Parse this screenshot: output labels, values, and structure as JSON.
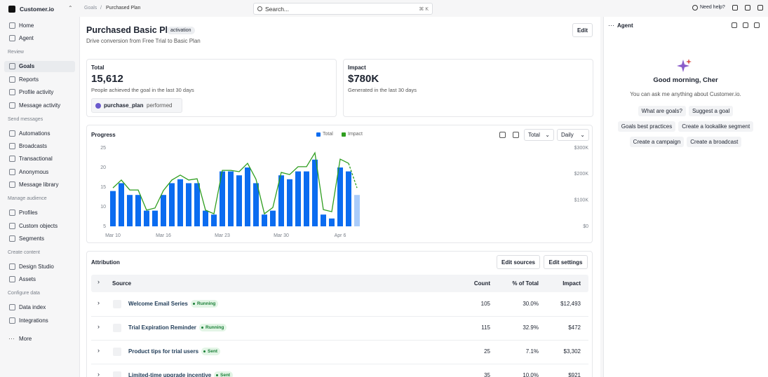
{
  "topbar": {
    "breadcrumb": [
      "Goals",
      "Purchased Plan"
    ],
    "search": "Search...",
    "shortcut": "⌘ K",
    "help": "Need help?"
  },
  "sidebar": {
    "brand": "Customer.io",
    "top": [
      "Home",
      "Agent"
    ],
    "sections": [
      {
        "title": "Review",
        "items": [
          "Goals",
          "Reports",
          "Profile activity",
          "Message activity"
        ]
      },
      {
        "title": "Send messages",
        "items": [
          "Automations",
          "Broadcasts",
          "Transactional",
          "Anonymous",
          "Message library"
        ]
      },
      {
        "title": "Manage audience",
        "items": [
          "Profiles",
          "Custom objects",
          "Segments"
        ]
      },
      {
        "title": "Create content",
        "items": [
          "Design Studio",
          "Assets"
        ]
      },
      {
        "title": "Configure data",
        "items": [
          "Data index",
          "Integrations"
        ]
      }
    ],
    "more": "More"
  },
  "header": {
    "title": "Purchased Basic Plan",
    "badge": "activation",
    "subtitle": "Drive conversion from Free Trial to Basic Plan",
    "edit": "Edit"
  },
  "stats": [
    {
      "label": "Total",
      "value": "15,612",
      "caption": "People achieved the goal in the last 30 days",
      "chip": "purchase_plan",
      "chip_suffix": "performed"
    },
    {
      "label": "Impact",
      "value": "$780K",
      "caption": "Generated in the last 30 days"
    }
  ],
  "progress": {
    "title": "Progress",
    "controls": [
      "Total",
      "Daily"
    ]
  },
  "chart_data": {
    "type": "bar",
    "categories": [
      "Mar 10",
      null,
      null,
      null,
      null,
      null,
      "Mar 16",
      null,
      null,
      null,
      null,
      null,
      null,
      "Mar 23",
      null,
      null,
      null,
      null,
      null,
      null,
      "Mar 30",
      null,
      null,
      null,
      null,
      null,
      null,
      "Apr 6",
      null,
      null
    ],
    "series": [
      {
        "name": "Total",
        "color": "#0b6cf0",
        "values": [
          14,
          16,
          13,
          13,
          9,
          9,
          13,
          16,
          17,
          16,
          16,
          9,
          8,
          19,
          19,
          18,
          20,
          16,
          8,
          9,
          18,
          17,
          19,
          19,
          22,
          8,
          7,
          20,
          19,
          13
        ]
      },
      {
        "name": "Impact",
        "type": "line",
        "axis": "y2",
        "color": "#2f9e1f",
        "values": [
          147000,
          177000,
          139000,
          139000,
          62000,
          70000,
          137000,
          177000,
          196000,
          177000,
          182000,
          62000,
          48000,
          214000,
          214000,
          209000,
          241000,
          180000,
          48000,
          72000,
          206000,
          198000,
          228000,
          228000,
          281000,
          64000,
          56000,
          257000,
          241000,
          147000
        ]
      }
    ],
    "ylim": [
      5,
      25
    ],
    "yticks": [
      5,
      10,
      15,
      20,
      25
    ],
    "y2lim": [
      0,
      300000
    ],
    "y2ticks": [
      {
        "value": 0,
        "label": "$0"
      },
      {
        "value": 100000,
        "label": "$100K"
      },
      {
        "value": 200000,
        "label": "$200K"
      },
      {
        "value": 300000,
        "label": "$300K"
      }
    ],
    "grid": false
  },
  "attribution": {
    "title": "Attribution",
    "buttons": [
      "Edit sources",
      "Edit settings"
    ],
    "columns": [
      "Source",
      "Count",
      "% of Total",
      "Impact"
    ],
    "rows": [
      {
        "name": "Welcome Email Series",
        "status": "Running",
        "count": "105",
        "share": "30.0%",
        "impact": "$12,493"
      },
      {
        "name": "Trial Expiration Reminder",
        "status": "Running",
        "count": "115",
        "share": "32.9%",
        "impact": "$472"
      },
      {
        "name": "Product tips for trial users",
        "status": "Sent",
        "count": "25",
        "share": "7.1%",
        "impact": "$3,302"
      },
      {
        "name": "Limited-time upgrade incentive",
        "status": "Sent",
        "count": "35",
        "share": "10.0%",
        "impact": "$921"
      }
    ]
  },
  "agent": {
    "title": "Agent",
    "greeting": "Good morning, Cher",
    "intro": "You can ask me anything about Customer.io.",
    "suggestions": [
      [
        "What are goals?",
        "Suggest a goal"
      ],
      [
        "Goals best practices",
        "Create a lookalike segment"
      ],
      [
        "Create a campaign",
        "Create a broadcast"
      ]
    ]
  }
}
